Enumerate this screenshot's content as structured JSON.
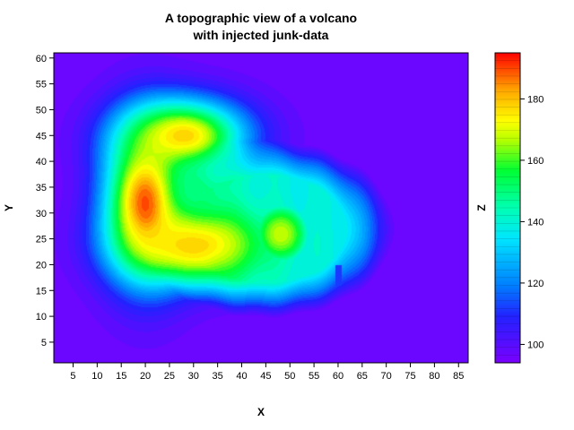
{
  "chart_data": {
    "type": "heatmap",
    "title_line1": "A topographic view of a volcano",
    "title_line2": "with injected junk-data",
    "xlabel": "X",
    "ylabel": "Y",
    "colorbar_label": "Z",
    "xlim": [
      1,
      87
    ],
    "ylim": [
      1,
      61
    ],
    "zlim": [
      94,
      195
    ],
    "x_ticks": [
      5,
      10,
      15,
      20,
      25,
      30,
      35,
      40,
      45,
      50,
      55,
      60,
      65,
      70,
      75,
      80,
      85
    ],
    "y_ticks": [
      5,
      10,
      15,
      20,
      25,
      30,
      35,
      40,
      45,
      50,
      55,
      60
    ],
    "z_ticks": [
      100,
      120,
      140,
      160,
      180
    ],
    "colormap": "rainbow (purple-blue-cyan-green-yellow-red)",
    "grid": false,
    "features": [
      {
        "kind": "background",
        "z": 96
      },
      {
        "kind": "mound",
        "x": 45,
        "y": 27,
        "rx": 30,
        "ry": 19,
        "z": 138
      },
      {
        "kind": "ridge",
        "x": 20,
        "y": 32,
        "rx": 6,
        "ry": 10,
        "z": 190
      },
      {
        "kind": "ridge",
        "x": 28,
        "y": 45,
        "rx": 9,
        "ry": 5,
        "z": 178
      },
      {
        "kind": "ridge",
        "x": 30,
        "y": 24,
        "rx": 10,
        "ry": 5,
        "z": 178
      },
      {
        "kind": "crater",
        "x": 30,
        "y": 34,
        "r": 4,
        "z": 150
      },
      {
        "kind": "peak",
        "x": 48,
        "y": 26,
        "r": 3,
        "z": 168
      },
      {
        "kind": "junk",
        "x": 60,
        "y_range": [
          16,
          20
        ],
        "z": 112
      }
    ]
  }
}
